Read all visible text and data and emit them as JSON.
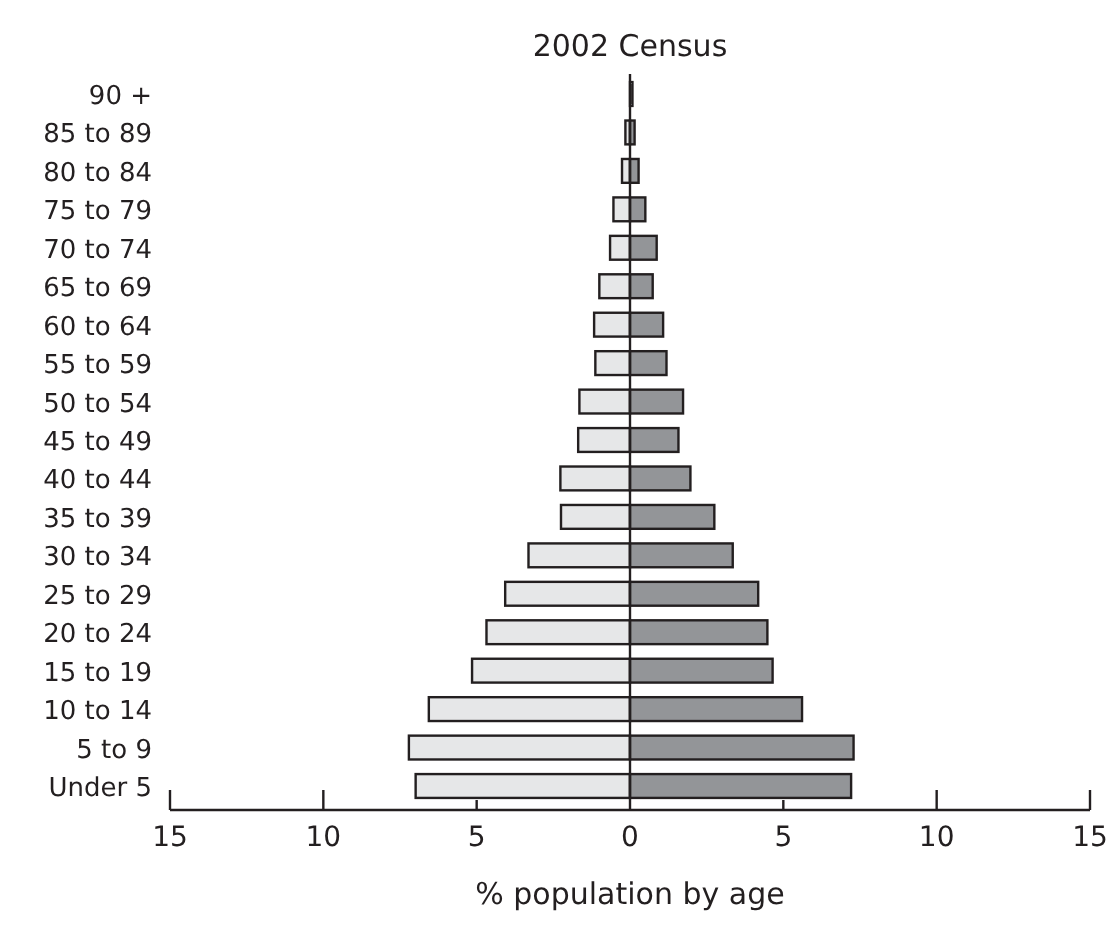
{
  "chart_data": {
    "type": "bar",
    "title": "2002 Census",
    "xlabel": "% population by age",
    "orientation": "horizontal",
    "stacked": true,
    "categories": [
      "90 +",
      "85 to 89",
      "80 to 84",
      "75 to 79",
      "70 to 74",
      "65 to 69",
      "60 to 64",
      "55 to 59",
      "50 to 54",
      "45 to 49",
      "40 to 44",
      "35 to 39",
      "30 to 34",
      "25 to 29",
      "20 to 24",
      "15 to 19",
      "10 to 14",
      "5 to 9",
      "Under 5"
    ],
    "series": [
      {
        "color": "#e6e7e8",
        "values": [
          null,
          -0.15,
          -0.26,
          -0.54,
          -0.65,
          -1.0,
          -1.17,
          -1.13,
          -1.65,
          -1.69,
          -2.27,
          -2.25,
          -3.31,
          -4.07,
          -4.68,
          -5.15,
          -6.56,
          -7.21,
          -6.99
        ]
      },
      {
        "color": "#939598",
        "values": [
          0.08,
          0.15,
          0.28,
          0.5,
          0.87,
          0.74,
          1.08,
          1.19,
          1.73,
          1.58,
          1.97,
          2.75,
          3.35,
          4.18,
          4.48,
          4.65,
          5.61,
          7.29,
          7.21
        ]
      }
    ],
    "xlim": [
      -15,
      15
    ],
    "xticks": [
      {
        "value": -15,
        "label": "15"
      },
      {
        "value": -10,
        "label": "10"
      },
      {
        "value": -5,
        "label": "5"
      },
      0,
      5,
      10,
      15
    ],
    "ref_lines": [
      {
        "axis": "x",
        "value": 0,
        "color": "#231f20"
      }
    ]
  }
}
